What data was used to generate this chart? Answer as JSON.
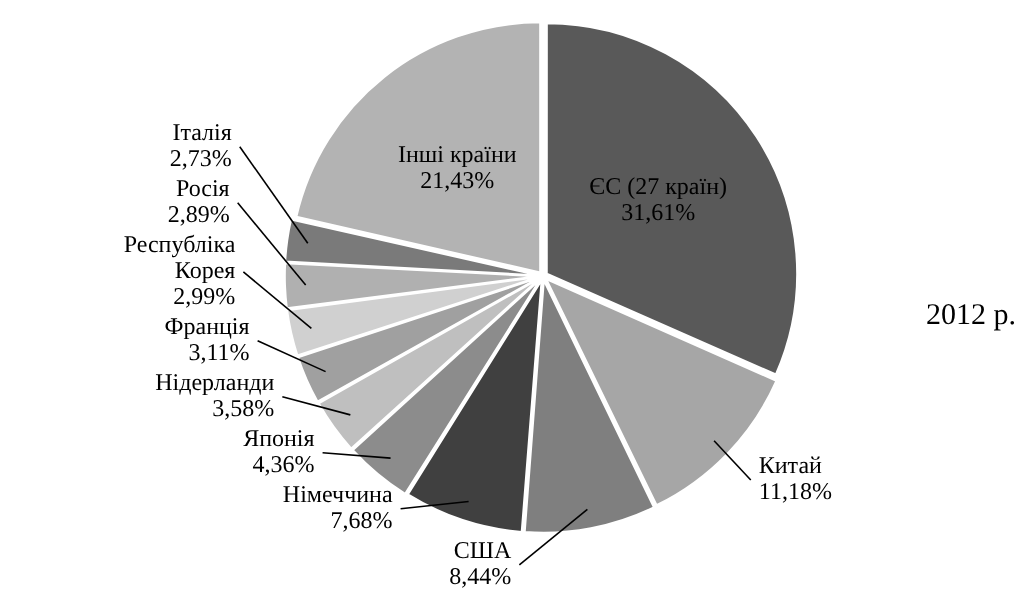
{
  "chart_data": {
    "type": "pie",
    "categories": [
      "ЄС (27 країн)",
      "Китай",
      "США",
      "Німеччина",
      "Японія",
      "Нідерланди",
      "Франція",
      "Республіка Корея",
      "Росія",
      "Італія",
      "Інші країни"
    ],
    "values": [
      31.61,
      11.18,
      8.44,
      7.68,
      4.36,
      3.58,
      3.11,
      2.99,
      2.89,
      2.73,
      21.43
    ],
    "value_labels": [
      "31,61%",
      "11,18%",
      "8,44%",
      "7,68%",
      "4,36%",
      "3,58%",
      "3,11%",
      "2,99%",
      "2,89%",
      "2,73%",
      "21,43%"
    ],
    "colors": [
      "#595959",
      "#a6a6a6",
      "#7f7f7f",
      "#404040",
      "#8c8c8c",
      "#bfbfbf",
      "#a0a0a0",
      "#d0d0d0",
      "#b0b0b0",
      "#7a7a7a",
      "#b3b3b3"
    ],
    "legend": false,
    "annotations": [
      "2012 р."
    ]
  }
}
